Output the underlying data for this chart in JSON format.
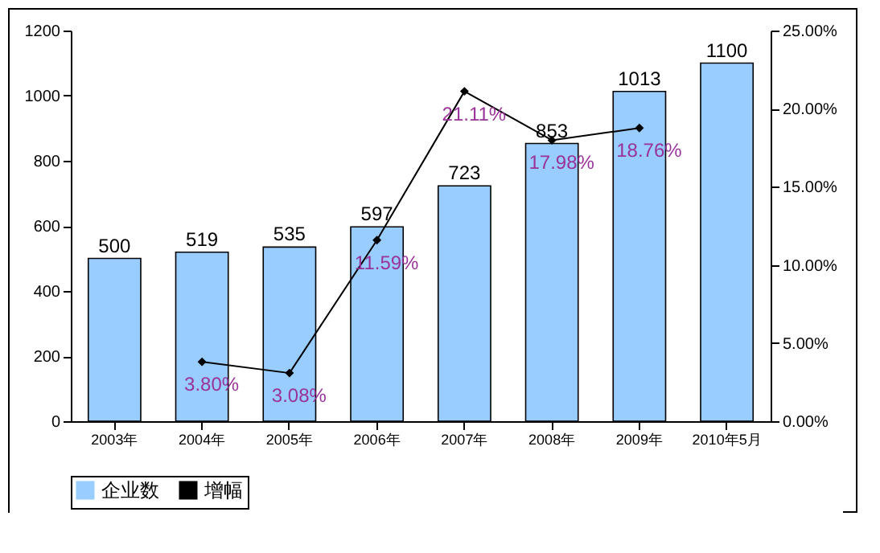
{
  "chart_data": {
    "type": "bar",
    "categories": [
      "2003年",
      "2004年",
      "2005年",
      "2006年",
      "2007年",
      "2008年",
      "2009年",
      "2010年5月"
    ],
    "series": [
      {
        "name": "企业数",
        "color": "#99ccff",
        "values": [
          500,
          519,
          535,
          597,
          723,
          853,
          1013,
          1100
        ],
        "value_labels": [
          "500",
          "519",
          "535",
          "597",
          "723",
          "853",
          "1013",
          "1100"
        ]
      },
      {
        "name": "增幅",
        "type": "line",
        "axis": "y2",
        "color": "#000000",
        "values": [
          null,
          3.8,
          3.08,
          11.59,
          21.11,
          17.98,
          18.76,
          null
        ],
        "value_labels": [
          null,
          "3.80%",
          "3.08%",
          "11.59%",
          "21.11%",
          "17.98%",
          "18.76%",
          null
        ]
      }
    ],
    "ylim": [
      0,
      1200
    ],
    "yticks": [
      0,
      200,
      400,
      600,
      800,
      1000,
      1200
    ],
    "y2lim": [
      0,
      25
    ],
    "y2ticks": [
      {
        "value": 0,
        "label": "0.00%"
      },
      {
        "value": 5,
        "label": "5.00%"
      },
      {
        "value": 10,
        "label": "10.00%"
      },
      {
        "value": 15,
        "label": "15.00%"
      },
      {
        "value": 20,
        "label": "20.00%"
      },
      {
        "value": 25,
        "label": "25.00%"
      }
    ],
    "legend": "bottom",
    "marker": "diamond",
    "line_style": "solid"
  }
}
